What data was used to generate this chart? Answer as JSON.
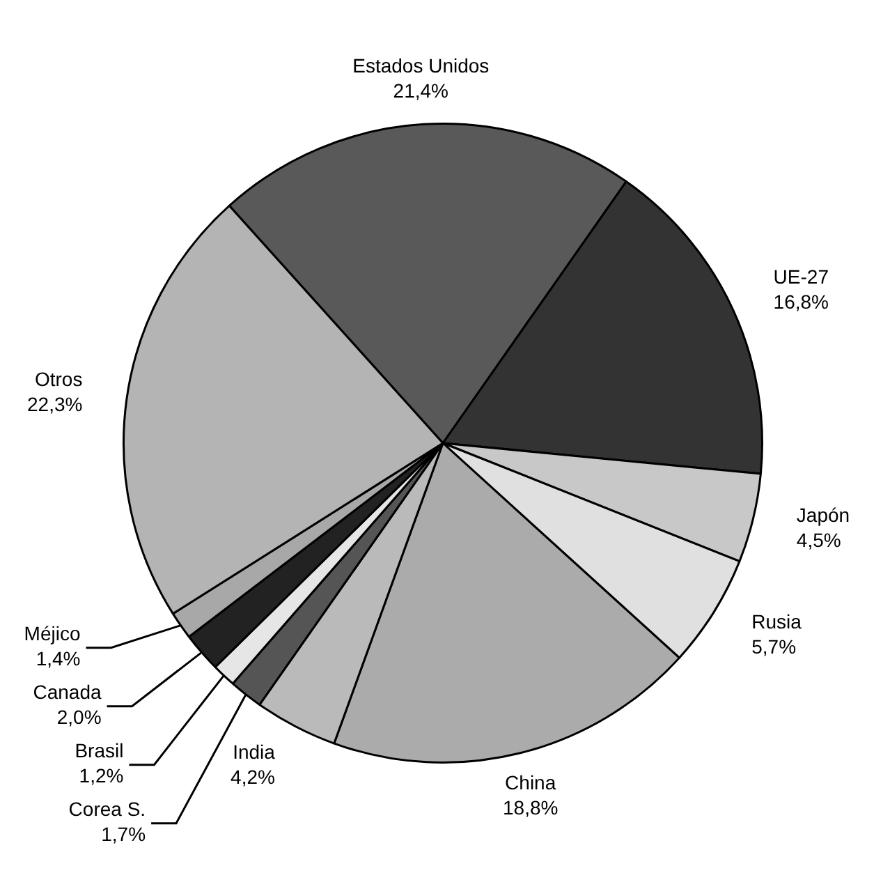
{
  "chart_data": {
    "type": "pie",
    "categories": [
      "Estados Unidos",
      "UE-27",
      "Japón",
      "Rusia",
      "China",
      "India",
      "Corea S.",
      "Brasil",
      "Canada",
      "Méjico",
      "Otros"
    ],
    "values": [
      21.4,
      16.8,
      4.5,
      5.7,
      18.8,
      4.2,
      1.7,
      1.2,
      2.0,
      1.4,
      22.3
    ],
    "value_labels": [
      "21,4%",
      "16,8%",
      "4,5%",
      "5,7%",
      "18,8%",
      "4,2%",
      "1,7%",
      "1,2%",
      "2,0%",
      "1,4%",
      "22,3%"
    ],
    "colors": [
      "#595959",
      "#333333",
      "#c8c8c8",
      "#e0e0e0",
      "#ababab",
      "#bababa",
      "#555555",
      "#e6e6e6",
      "#222222",
      "#a8a8a8",
      "#b4b4b4"
    ],
    "legend": false
  }
}
